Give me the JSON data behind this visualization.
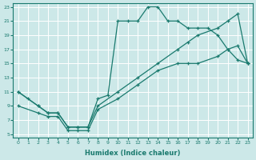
{
  "xlabel": "Humidex (Indice chaleur)",
  "bg_color": "#cce8e8",
  "grid_color": "#ffffff",
  "line_color": "#1a7a6e",
  "xlim": [
    -0.5,
    23.5
  ],
  "ylim": [
    4.5,
    23.5
  ],
  "xticks": [
    0,
    1,
    2,
    3,
    4,
    5,
    6,
    7,
    8,
    9,
    10,
    11,
    12,
    13,
    14,
    15,
    16,
    17,
    18,
    19,
    20,
    21,
    22,
    23
  ],
  "yticks": [
    5,
    7,
    9,
    11,
    13,
    15,
    17,
    19,
    21,
    23
  ],
  "line1_x": [
    0,
    1,
    2,
    3,
    4,
    5,
    6,
    7,
    8,
    9,
    10,
    11,
    12,
    13,
    14,
    15,
    16,
    17,
    18,
    19,
    20,
    21,
    22,
    23
  ],
  "line1_y": [
    11,
    10,
    9,
    8,
    8,
    6,
    6,
    6,
    10,
    10.5,
    21,
    21,
    21,
    23,
    23,
    21,
    21,
    20,
    20,
    20,
    19,
    17,
    15.5,
    15
  ],
  "line2_x": [
    0,
    2,
    3,
    4,
    5,
    6,
    7,
    8,
    10,
    12,
    14,
    16,
    17,
    18,
    20,
    21,
    22,
    23
  ],
  "line2_y": [
    11,
    9,
    8,
    8,
    6,
    6,
    6,
    9,
    11,
    13,
    15,
    17,
    18,
    19,
    20,
    21,
    22,
    15
  ],
  "line3_x": [
    0,
    2,
    3,
    4,
    5,
    6,
    7,
    8,
    10,
    12,
    14,
    16,
    17,
    18,
    20,
    21,
    22,
    23
  ],
  "line3_y": [
    9,
    8,
    7.5,
    7.5,
    5.5,
    5.5,
    5.5,
    8.5,
    10,
    12,
    14,
    15,
    15,
    15,
    16,
    17,
    17.5,
    15
  ]
}
